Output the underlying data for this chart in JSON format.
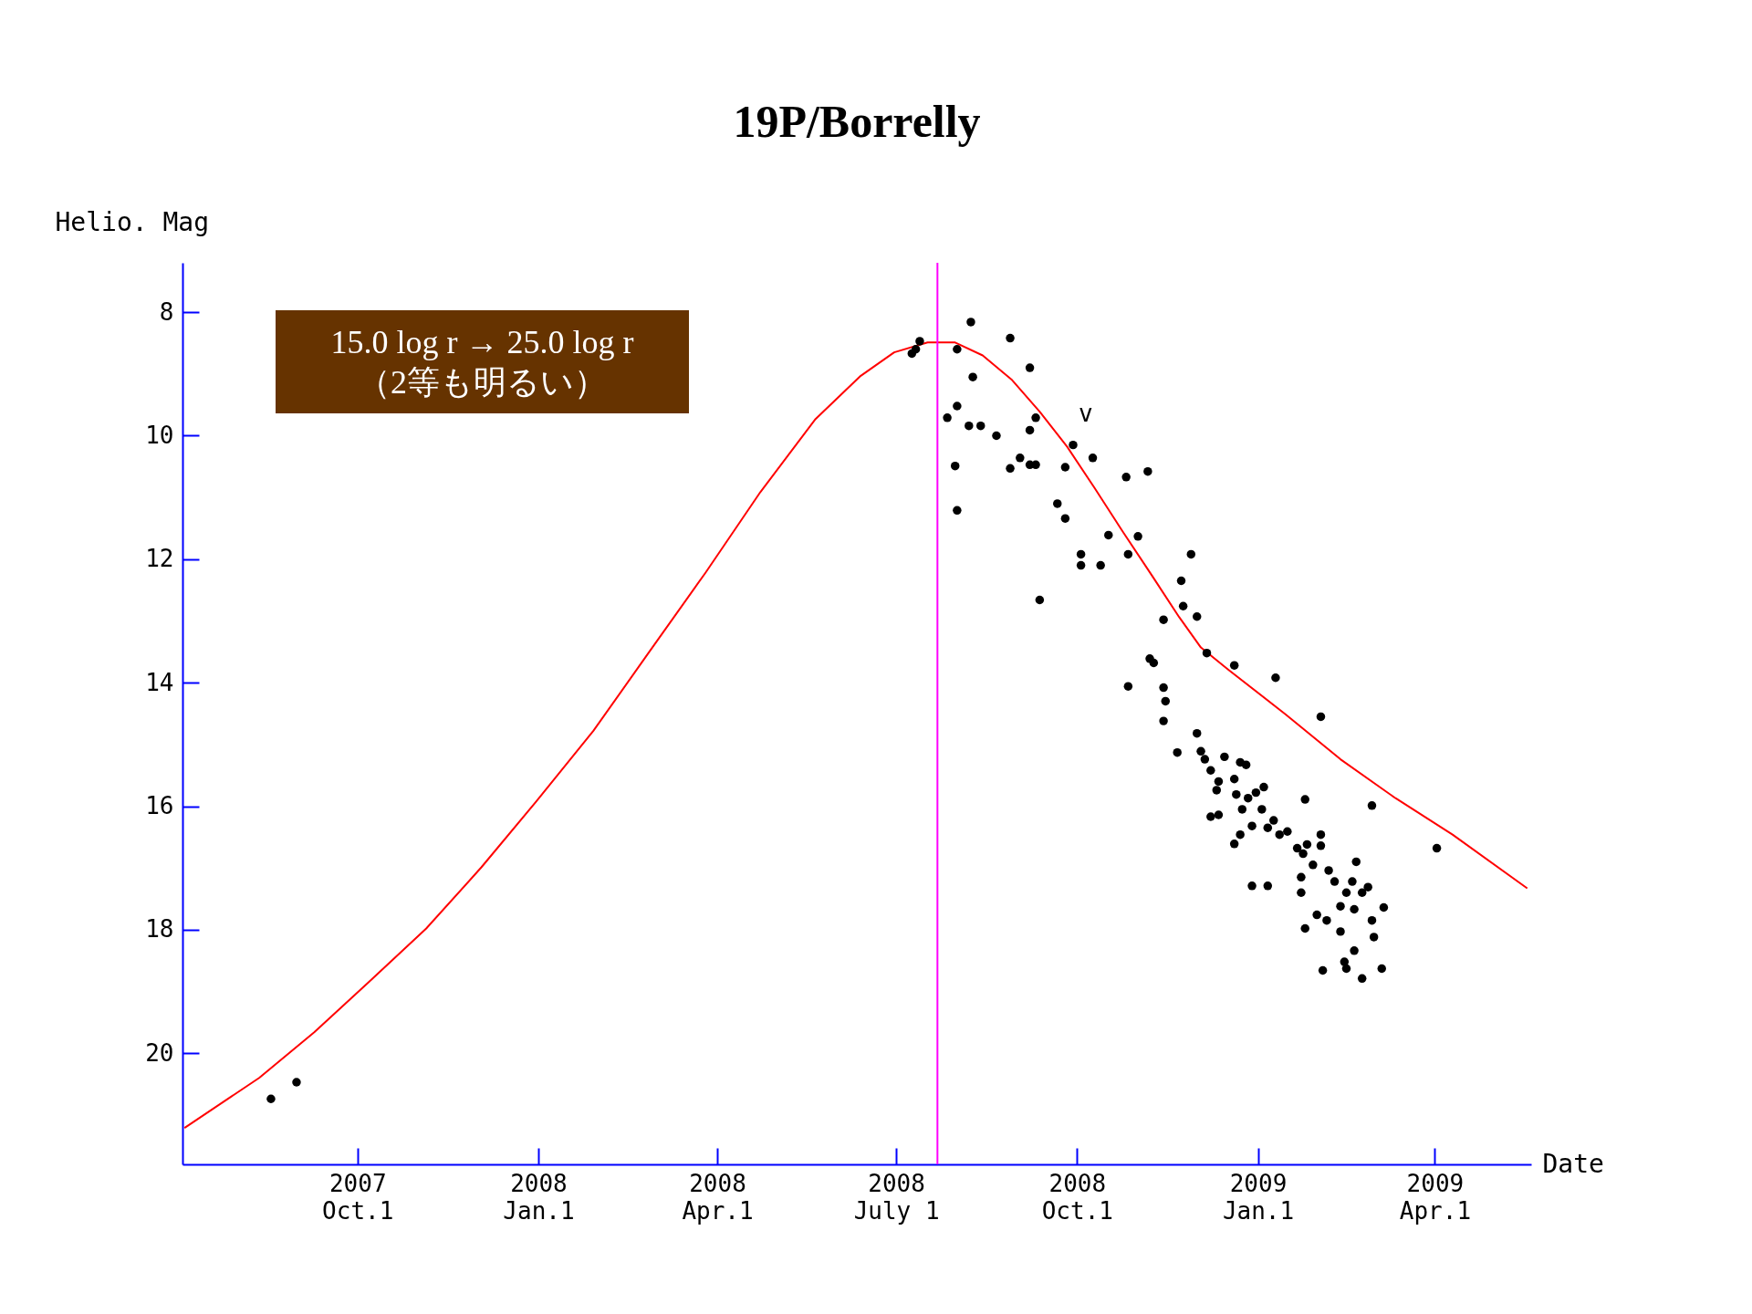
{
  "chart_data": {
    "type": "scatter",
    "title": "19P/Borrelly",
    "xlabel": "Date",
    "ylabel": "Helio. Mag",
    "xlim": [
      "2007-07-04",
      "2009-05-20"
    ],
    "ylim": [
      21.8,
      7.2
    ],
    "xticks": [
      {
        "value": "2007-10-01",
        "label": "2007\nOct.1"
      },
      {
        "value": "2008-01-01",
        "label": "2008\nJan.1"
      },
      {
        "value": "2008-04-01",
        "label": "2008\nApr.1"
      },
      {
        "value": "2008-07-01",
        "label": "2008\nJuly 1"
      },
      {
        "value": "2008-10-01",
        "label": "2008\nOct.1"
      },
      {
        "value": "2009-01-01",
        "label": "2009\nJan.1"
      },
      {
        "value": "2009-04-01",
        "label": "2009\nApr.1"
      }
    ],
    "yticks": [
      8,
      10,
      12,
      14,
      16,
      18,
      20
    ],
    "ref_lines": [
      {
        "axis": "x",
        "value": "2008-07-22",
        "color": "#ff00ff"
      }
    ],
    "annotations": [
      "15.0 log r → 25.0 log r\n（2等も明るい）",
      "v"
    ],
    "series": [
      {
        "type": "line",
        "color": "#ff0000",
        "marker": "none",
        "x": [
          "2007-07-05",
          "2007-08-12",
          "2007-09-09",
          "2007-10-07",
          "2007-11-05",
          "2007-12-03",
          "2007-12-31",
          "2008-01-29",
          "2008-02-26",
          "2008-03-26",
          "2008-04-23",
          "2008-05-21",
          "2008-06-13",
          "2008-06-30",
          "2008-07-17",
          "2008-07-31",
          "2008-08-14",
          "2008-08-29",
          "2008-09-12",
          "2008-09-26",
          "2008-10-10",
          "2008-10-24",
          "2008-11-08",
          "2008-11-22",
          "2008-12-03",
          "2008-12-17",
          "2009-01-15",
          "2009-02-12",
          "2009-03-12",
          "2009-04-10",
          "2009-05-18"
        ],
        "values": [
          21.21,
          20.4,
          19.66,
          18.84,
          17.98,
          16.99,
          15.92,
          14.78,
          13.52,
          12.22,
          10.91,
          9.73,
          9.03,
          8.65,
          8.49,
          8.49,
          8.7,
          9.1,
          9.61,
          10.18,
          10.85,
          11.54,
          12.26,
          12.94,
          13.43,
          13.79,
          14.51,
          15.24,
          15.87,
          16.46,
          17.33
        ]
      },
      {
        "color": "#000000",
        "marker": "circle",
        "x": [
          "2007-08-18",
          "2007-08-31",
          "2008-07-09",
          "2008-07-11",
          "2008-07-13",
          "2008-08-08",
          "2008-08-01",
          "2008-08-09",
          "2008-08-28",
          "2008-09-07",
          "2008-07-27",
          "2008-08-01",
          "2008-08-07",
          "2008-08-13",
          "2008-08-21",
          "2008-07-31",
          "2008-08-01",
          "2008-08-28",
          "2008-09-02",
          "2008-09-07",
          "2008-09-10",
          "2008-09-07",
          "2008-09-10",
          "2008-09-25",
          "2008-09-29",
          "2008-10-09",
          "2008-10-26",
          "2008-11-06",
          "2008-09-21",
          "2008-09-25",
          "2008-10-03",
          "2008-10-03",
          "2008-10-13",
          "2008-10-17",
          "2008-11-01",
          "2008-10-27",
          "2008-09-12",
          "2008-11-28",
          "2008-11-23",
          "2008-11-24",
          "2008-12-01",
          "2008-11-14",
          "2008-11-07",
          "2008-11-09",
          "2008-10-27",
          "2008-11-14",
          "2008-11-15",
          "2008-11-14",
          "2008-11-21",
          "2008-12-06",
          "2008-12-20",
          "2009-01-10",
          "2009-02-02",
          "2008-12-01",
          "2008-12-03",
          "2008-12-05",
          "2008-12-08",
          "2008-12-11",
          "2008-12-12",
          "2008-12-15",
          "2008-12-08",
          "2008-12-12",
          "2008-12-20",
          "2008-12-23",
          "2008-12-26",
          "2008-12-21",
          "2008-12-24",
          "2008-12-27",
          "2008-12-29",
          "2008-12-20",
          "2008-12-23",
          "2008-12-31",
          "2009-01-04",
          "2009-01-03",
          "2009-01-06",
          "2009-01-09",
          "2009-01-12",
          "2009-01-16",
          "2009-01-21",
          "2009-01-24",
          "2009-01-25",
          "2009-01-26",
          "2009-02-02",
          "2009-02-02",
          "2009-01-29",
          "2008-12-29",
          "2009-01-06",
          "2009-01-23",
          "2009-01-23",
          "2009-02-06",
          "2009-02-09",
          "2009-02-15",
          "2009-02-20",
          "2009-02-18",
          "2009-02-23",
          "2009-02-26",
          "2009-02-12",
          "2009-02-19",
          "2009-02-28",
          "2009-03-06",
          "2009-01-31",
          "2009-02-05",
          "2009-01-25",
          "2009-02-12",
          "2009-03-01",
          "2009-02-19",
          "2009-02-03",
          "2009-02-14",
          "2009-02-15",
          "2009-02-23",
          "2009-03-05",
          "2009-02-28",
          "2009-04-02"
        ],
        "values": [
          20.74,
          20.47,
          8.67,
          8.6,
          8.47,
          8.16,
          8.6,
          9.05,
          8.42,
          8.9,
          9.71,
          9.52,
          9.84,
          9.84,
          10.0,
          10.49,
          11.21,
          10.53,
          10.36,
          9.91,
          9.71,
          10.47,
          10.47,
          10.51,
          10.15,
          10.36,
          10.67,
          10.58,
          11.1,
          11.34,
          11.92,
          12.1,
          12.1,
          11.61,
          11.63,
          11.92,
          12.66,
          11.92,
          12.35,
          12.76,
          12.93,
          12.98,
          13.61,
          13.68,
          14.06,
          14.08,
          14.3,
          14.62,
          15.13,
          13.52,
          13.72,
          13.92,
          14.55,
          14.82,
          15.11,
          15.24,
          15.42,
          15.74,
          15.6,
          15.2,
          16.17,
          16.14,
          15.56,
          15.29,
          15.33,
          15.81,
          16.05,
          15.87,
          16.32,
          16.61,
          16.46,
          15.78,
          15.69,
          16.05,
          16.35,
          16.23,
          16.46,
          16.41,
          16.68,
          16.77,
          15.89,
          16.62,
          16.46,
          16.64,
          16.95,
          17.29,
          17.29,
          17.15,
          17.4,
          17.04,
          17.22,
          17.4,
          16.9,
          17.22,
          17.4,
          17.31,
          17.62,
          17.67,
          17.85,
          17.64,
          17.76,
          17.85,
          17.98,
          18.03,
          18.12,
          18.34,
          18.66,
          18.52,
          18.63,
          18.79,
          18.63,
          15.99,
          16.68
        ]
      }
    ]
  }
}
